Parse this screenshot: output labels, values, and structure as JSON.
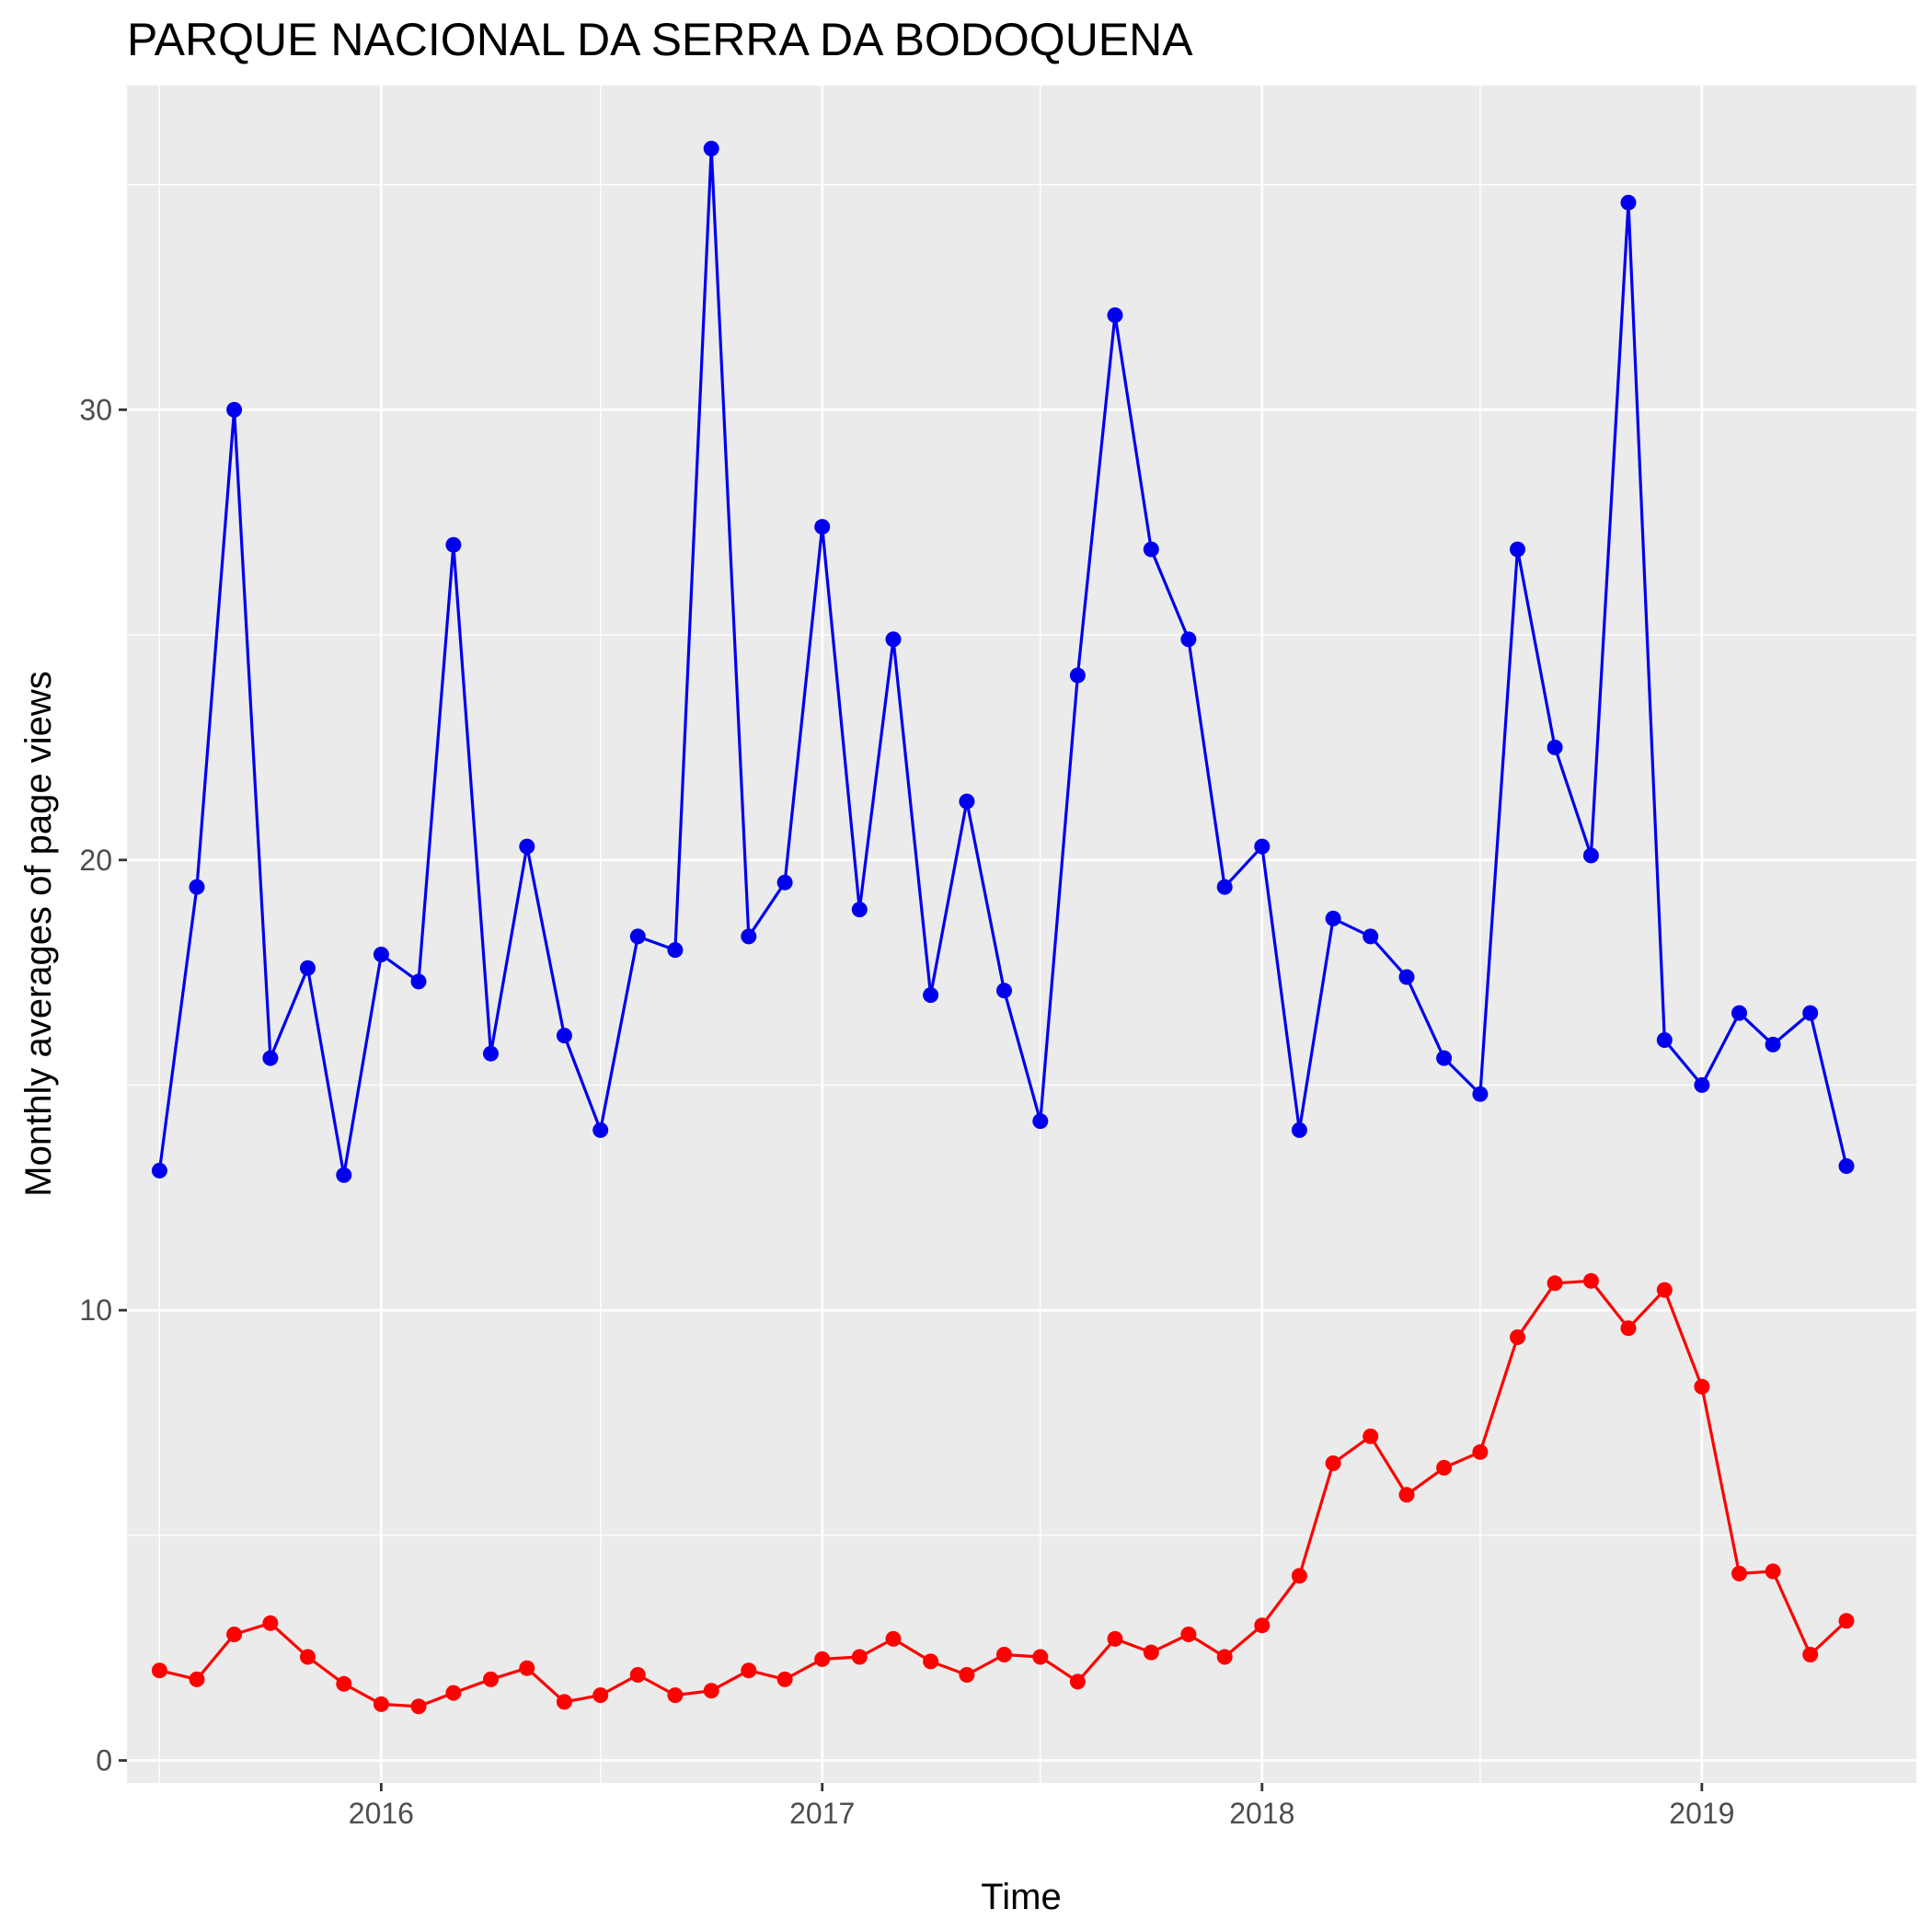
{
  "chart_data": {
    "type": "line",
    "title": "PARQUE NACIONAL DA SERRA DA BODOQUENA",
    "xlabel": "Time",
    "ylabel": "Monthly averages of page views",
    "x_ticks": [
      "2016",
      "2017",
      "2018",
      "2019"
    ],
    "y_ticks": [
      0,
      10,
      20,
      30
    ],
    "ylim": [
      -0.5,
      37.2
    ],
    "xlim": [
      "2015-06-04",
      "2019-06-28"
    ],
    "grid": true,
    "background": "#EBEBEB",
    "x": [
      "2015-07",
      "2015-08",
      "2015-09",
      "2015-10",
      "2015-11",
      "2015-12",
      "2016-01",
      "2016-02",
      "2016-03",
      "2016-04",
      "2016-05",
      "2016-06",
      "2016-07",
      "2016-08",
      "2016-09",
      "2016-10",
      "2016-11",
      "2016-12",
      "2017-01",
      "2017-02",
      "2017-03",
      "2017-04",
      "2017-05",
      "2017-06",
      "2017-07",
      "2017-08",
      "2017-09",
      "2017-10",
      "2017-11",
      "2017-12",
      "2018-01",
      "2018-02",
      "2018-03",
      "2018-04",
      "2018-05",
      "2018-06",
      "2018-07",
      "2018-08",
      "2018-09",
      "2018-10",
      "2018-11",
      "2018-12",
      "2019-01",
      "2019-02",
      "2019-03",
      "2019-04",
      "2019-05"
    ],
    "series": [
      {
        "color": "#0000EE",
        "values": [
          13.1,
          19.4,
          30.0,
          15.6,
          17.6,
          13.0,
          17.9,
          17.3,
          27.0,
          15.7,
          20.3,
          16.1,
          14.0,
          18.3,
          18.0,
          35.8,
          18.3,
          19.5,
          27.4,
          18.9,
          24.9,
          17.0,
          21.3,
          17.1,
          14.2,
          24.1,
          32.1,
          26.9,
          24.9,
          19.4,
          20.3,
          14.0,
          18.7,
          18.3,
          17.4,
          15.6,
          14.8,
          26.9,
          22.5,
          20.1,
          34.6,
          16.0,
          15.0,
          16.6,
          15.9,
          16.6,
          13.2
        ]
      },
      {
        "color": "#FF0000",
        "values": [
          2.0,
          1.8,
          2.8,
          3.05,
          2.3,
          1.7,
          1.25,
          1.2,
          1.5,
          1.8,
          2.05,
          1.3,
          1.45,
          1.9,
          1.45,
          1.55,
          2.0,
          1.8,
          2.25,
          2.3,
          2.7,
          2.2,
          1.9,
          2.35,
          2.3,
          1.75,
          2.7,
          2.4,
          2.8,
          2.3,
          3.0,
          4.1,
          6.6,
          7.2,
          5.9,
          6.5,
          6.85,
          9.4,
          10.6,
          10.65,
          9.6,
          10.45,
          8.3,
          4.15,
          4.2,
          2.35,
          3.1
        ]
      }
    ]
  }
}
